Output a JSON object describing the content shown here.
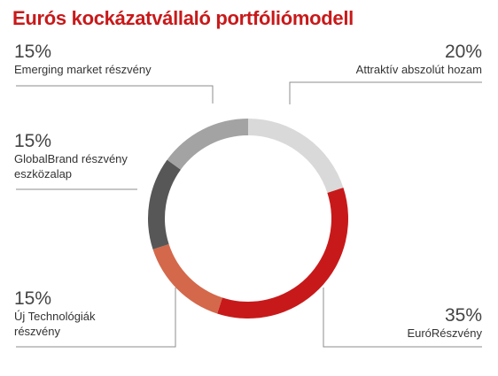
{
  "title": "Eurós kockázatvállaló portfóliómodell",
  "colors": {
    "title": "#c8191a",
    "leader": "#8c8c8c"
  },
  "chart_data": {
    "type": "pie",
    "donut": true,
    "title": "Eurós kockázatvállaló portfóliómodell",
    "slices": [
      {
        "label": "Attraktív abszolút hozam",
        "label_lines": [
          "Attraktív abszolút hozam"
        ],
        "pct_text": "20%",
        "value": 20,
        "color": "#d9d9d9"
      },
      {
        "label": "EuróRészvény",
        "label_lines": [
          "EuróRészvény"
        ],
        "pct_text": "35%",
        "value": 35,
        "color": "#c8191a"
      },
      {
        "label": "Új Technológiák részvény",
        "label_lines": [
          "Új Technológiák",
          "részvény"
        ],
        "pct_text": "15%",
        "value": 15,
        "color": "#d4684b"
      },
      {
        "label": "GlobalBrand részvény eszközalap",
        "label_lines": [
          "GlobalBrand részvény",
          "eszközalap"
        ],
        "pct_text": "15%",
        "value": 15,
        "color": "#575757"
      },
      {
        "label": "Emerging market részvény",
        "label_lines": [
          "Emerging market részvény"
        ],
        "pct_text": "15%",
        "value": 15,
        "color": "#a3a3a3"
      }
    ]
  }
}
